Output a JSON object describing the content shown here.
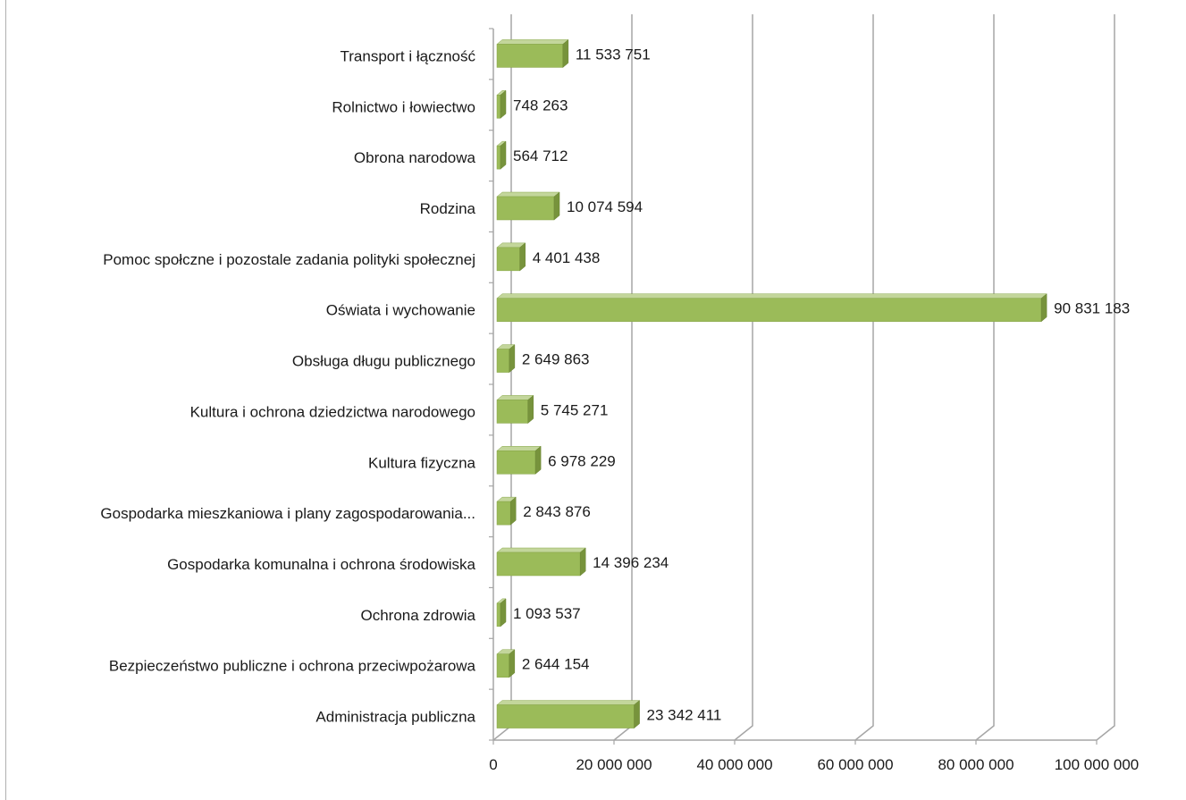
{
  "chart_data": {
    "type": "bar",
    "orientation": "horizontal",
    "style": "3d",
    "categories": [
      "Administracja publiczna",
      "Bezpieczeństwo publiczne i ochrona przeciwpożarowa",
      "Ochrona zdrowia",
      "Gospodarka komunalna i ochrona środowiska",
      "Gospodarka mieszkaniowa i plany zagospodarowania...",
      "Kultura fizyczna",
      "Kultura i ochrona dziedzictwa narodowego",
      "Obsługa długu publicznego",
      "Oświata i wychowanie",
      "Pomoc społczne i pozostale zadania polityki społecznej",
      "Rodzina",
      "Obrona narodowa",
      "Rolnictwo i łowiectwo",
      "Transport i łączność"
    ],
    "values": [
      23342411,
      2644154,
      1093537,
      14396234,
      2843876,
      6978229,
      5745271,
      2649863,
      90831183,
      4401438,
      10074594,
      564712,
      748263,
      11533751
    ],
    "value_labels": [
      "23 342 411",
      "2 644 154",
      "1 093 537",
      "14 396 234",
      "2 843 876",
      "6 978 229",
      "5 745 271",
      "2 649 863",
      "90 831 183",
      "4 401 438",
      "10 074 594",
      "564 712",
      "748 263",
      "11 533 751"
    ],
    "x_ticks": [
      0,
      20000000,
      40000000,
      60000000,
      80000000,
      100000000
    ],
    "x_tick_labels": [
      "0",
      "20 000 000",
      "40 000 000",
      "60 000 000",
      "80 000 000",
      "100 000 000"
    ],
    "xlim": [
      0,
      100000000
    ],
    "grid": true,
    "legend": "none",
    "colors": {
      "bar_front": "#9bbb59",
      "bar_top": "#c3d69b",
      "bar_side": "#77933c",
      "grid": "#a6a6a6"
    }
  }
}
